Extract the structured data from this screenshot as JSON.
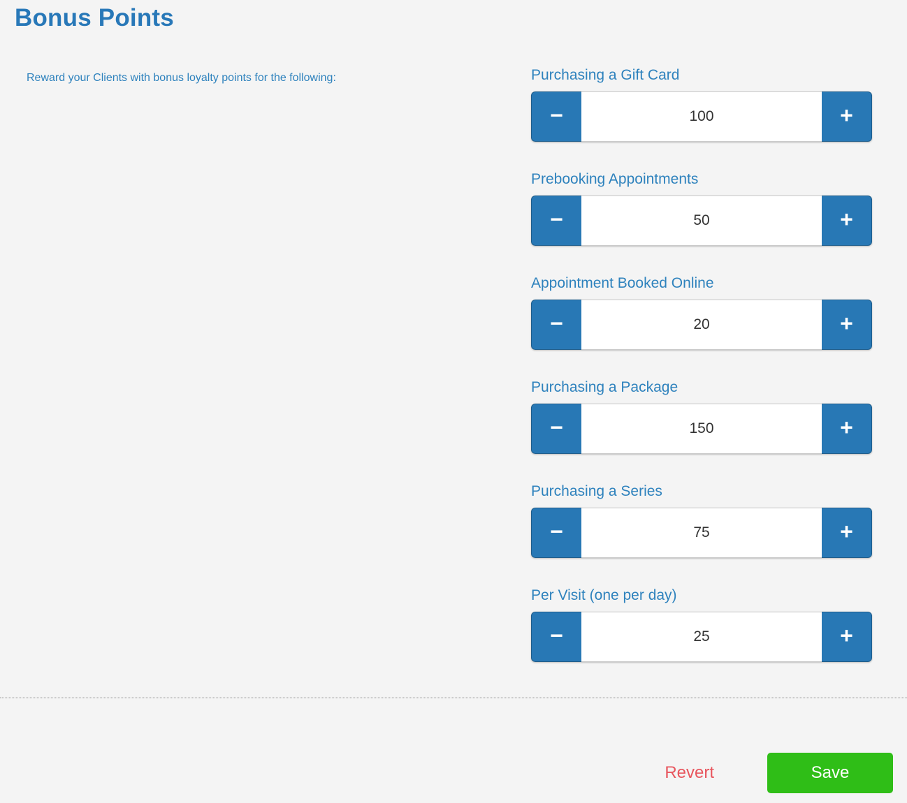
{
  "page": {
    "title": "Bonus Points",
    "description": "Reward your Clients with bonus loyalty points for the following:"
  },
  "steppers": [
    {
      "label": "Purchasing a Gift Card",
      "value": "100"
    },
    {
      "label": "Prebooking Appointments",
      "value": "50"
    },
    {
      "label": "Appointment Booked Online",
      "value": "20"
    },
    {
      "label": "Purchasing a Package",
      "value": "150"
    },
    {
      "label": "Purchasing a Series",
      "value": "75"
    },
    {
      "label": "Per Visit (one per day)",
      "value": "25"
    }
  ],
  "controls": {
    "minus_glyph": "−",
    "plus_glyph": "+"
  },
  "footer": {
    "revert_label": "Revert",
    "save_label": "Save"
  },
  "colors": {
    "background": "#f4f4f4",
    "title_blue": "#2878b8",
    "accent_blue": "#2e82bd",
    "button_blue": "#2878b5",
    "save_green": "#2fbe17",
    "revert_red": "#e8565e"
  }
}
